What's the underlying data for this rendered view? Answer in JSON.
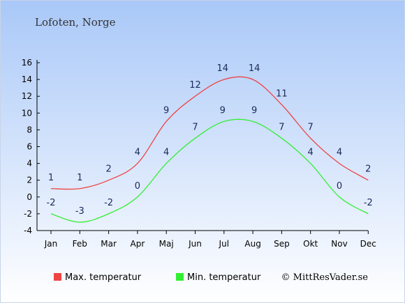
{
  "chart_data": {
    "type": "line",
    "title": "Lofoten, Norge",
    "categories": [
      "Jan",
      "Feb",
      "Mar",
      "Apr",
      "Maj",
      "Jun",
      "Jul",
      "Aug",
      "Sep",
      "Okt",
      "Nov",
      "Dec"
    ],
    "series": [
      {
        "name": "Max. temperatur",
        "color": "#ee4444",
        "values": [
          1,
          1,
          2,
          4,
          9,
          12,
          14,
          14,
          11,
          7,
          4,
          2
        ]
      },
      {
        "name": "Min. temperatur",
        "color": "#33ee33",
        "values": [
          -2,
          -3,
          -2,
          0,
          4,
          7,
          9,
          9,
          7,
          4,
          0,
          -2
        ]
      }
    ],
    "y_ticks": [
      -4,
      -2,
      0,
      2,
      4,
      6,
      8,
      10,
      12,
      14,
      16
    ],
    "ylim": [
      -4,
      16
    ],
    "grid": false,
    "legend_position": "bottom",
    "background_gradient": [
      "#a9c8f8",
      "#ffffff"
    ]
  },
  "credit": "© MittResVader.se"
}
